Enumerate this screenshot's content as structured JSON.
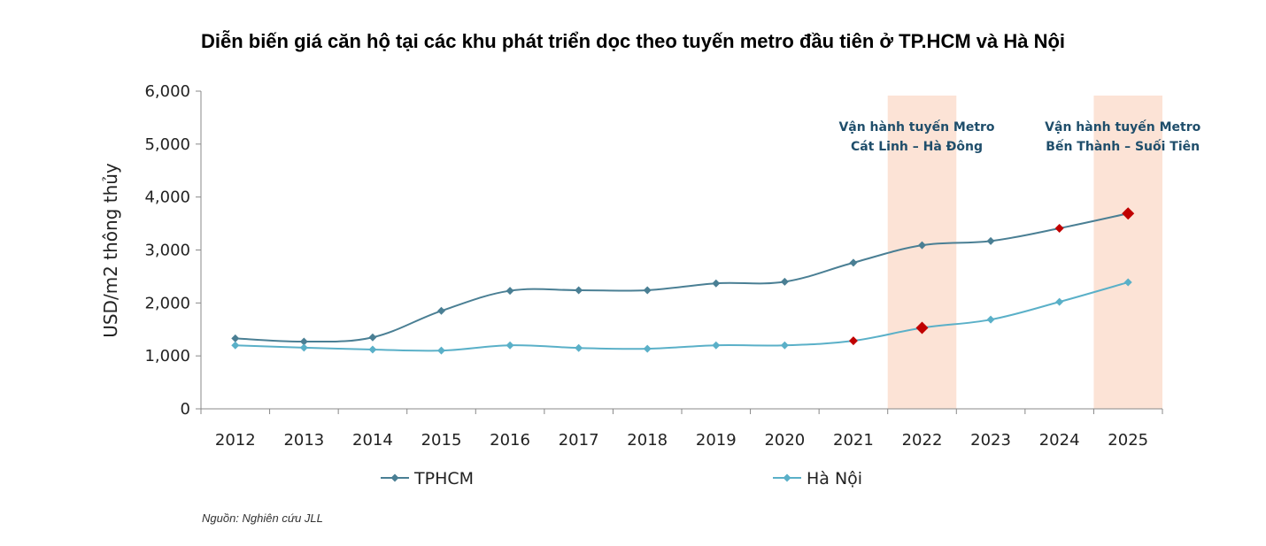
{
  "chart_data": {
    "type": "line",
    "title": "Diễn biến giá căn hộ tại các khu phát triển dọc theo tuyến metro đầu tiên ở TP.HCM và Hà Nội",
    "ylabel": "USD/m2 thông thủy",
    "xlabel": "",
    "ylim": [
      0,
      6000
    ],
    "yticks": [
      "0",
      "1,000",
      "2,000",
      "3,000",
      "4,000",
      "5,000",
      "6,000"
    ],
    "categories": [
      "2012",
      "2013",
      "2014",
      "2015",
      "2016",
      "2017",
      "2018",
      "2019",
      "2020",
      "2021",
      "2022",
      "2023",
      "2024",
      "2025"
    ],
    "series": [
      {
        "name": "TPHCM",
        "color": "#4a7f94",
        "values": [
          1330,
          1270,
          1350,
          1850,
          2230,
          2240,
          2240,
          2370,
          2400,
          2760,
          3090,
          3170,
          3410,
          3690
        ],
        "highlights": [
          {
            "index": 12,
            "size": "small"
          },
          {
            "index": 13,
            "size": "large"
          }
        ]
      },
      {
        "name": "Hà Nội",
        "color": "#5ab0c8",
        "values": [
          1200,
          1155,
          1120,
          1100,
          1200,
          1150,
          1135,
          1200,
          1200,
          1285,
          1530,
          1685,
          2020,
          2390
        ],
        "highlights": [
          {
            "index": 9,
            "size": "small"
          },
          {
            "index": 10,
            "size": "large"
          }
        ]
      }
    ],
    "highlight_color": "#c00000",
    "bands": [
      {
        "category": "2022",
        "color": "#fce3d6",
        "label": [
          "Vận hành tuyến Metro",
          "Cát Linh – Hà Đông"
        ]
      },
      {
        "category": "2025",
        "color": "#fce3d6",
        "label": [
          "Vận hành tuyến Metro",
          "Bến Thành – Suối Tiên"
        ]
      }
    ],
    "legend_position": "bottom",
    "grid": false
  },
  "source": "Nguồn: Nghiên cứu JLL"
}
